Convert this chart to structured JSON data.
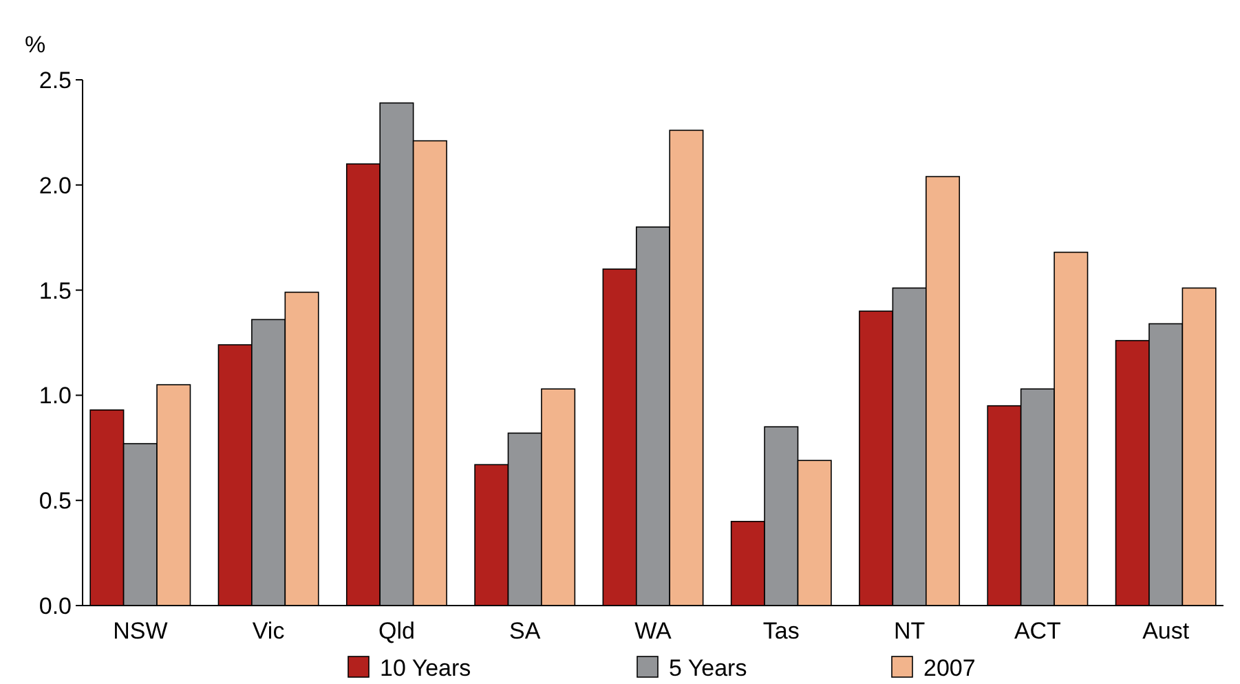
{
  "chart_data": {
    "type": "bar",
    "ylabel": "%",
    "categories": [
      "NSW",
      "Vic",
      "Qld",
      "SA",
      "WA",
      "Tas",
      "NT",
      "ACT",
      "Aust"
    ],
    "series": [
      {
        "name": "10 Years",
        "color": "#b3211d",
        "values": [
          0.93,
          1.24,
          2.1,
          0.67,
          1.6,
          0.4,
          1.4,
          0.95,
          1.26
        ]
      },
      {
        "name": "5 Years",
        "color": "#939598",
        "values": [
          0.77,
          1.36,
          2.39,
          0.82,
          1.8,
          0.85,
          1.51,
          1.03,
          1.34
        ]
      },
      {
        "name": "2007",
        "color": "#f2b48c",
        "values": [
          1.05,
          1.49,
          2.21,
          1.03,
          2.26,
          0.69,
          2.04,
          1.68,
          1.51
        ]
      }
    ],
    "ylim": [
      0,
      2.5
    ],
    "yticks": [
      {
        "value": 0,
        "label": "0.0"
      },
      {
        "value": 0.5,
        "label": "0.5"
      },
      {
        "value": 1,
        "label": "1.0"
      },
      {
        "value": 1.5,
        "label": "1.5"
      },
      {
        "value": 2,
        "label": "2.0"
      },
      {
        "value": 2.5,
        "label": "2.5"
      }
    ],
    "grid": false,
    "legend": "bottom"
  }
}
